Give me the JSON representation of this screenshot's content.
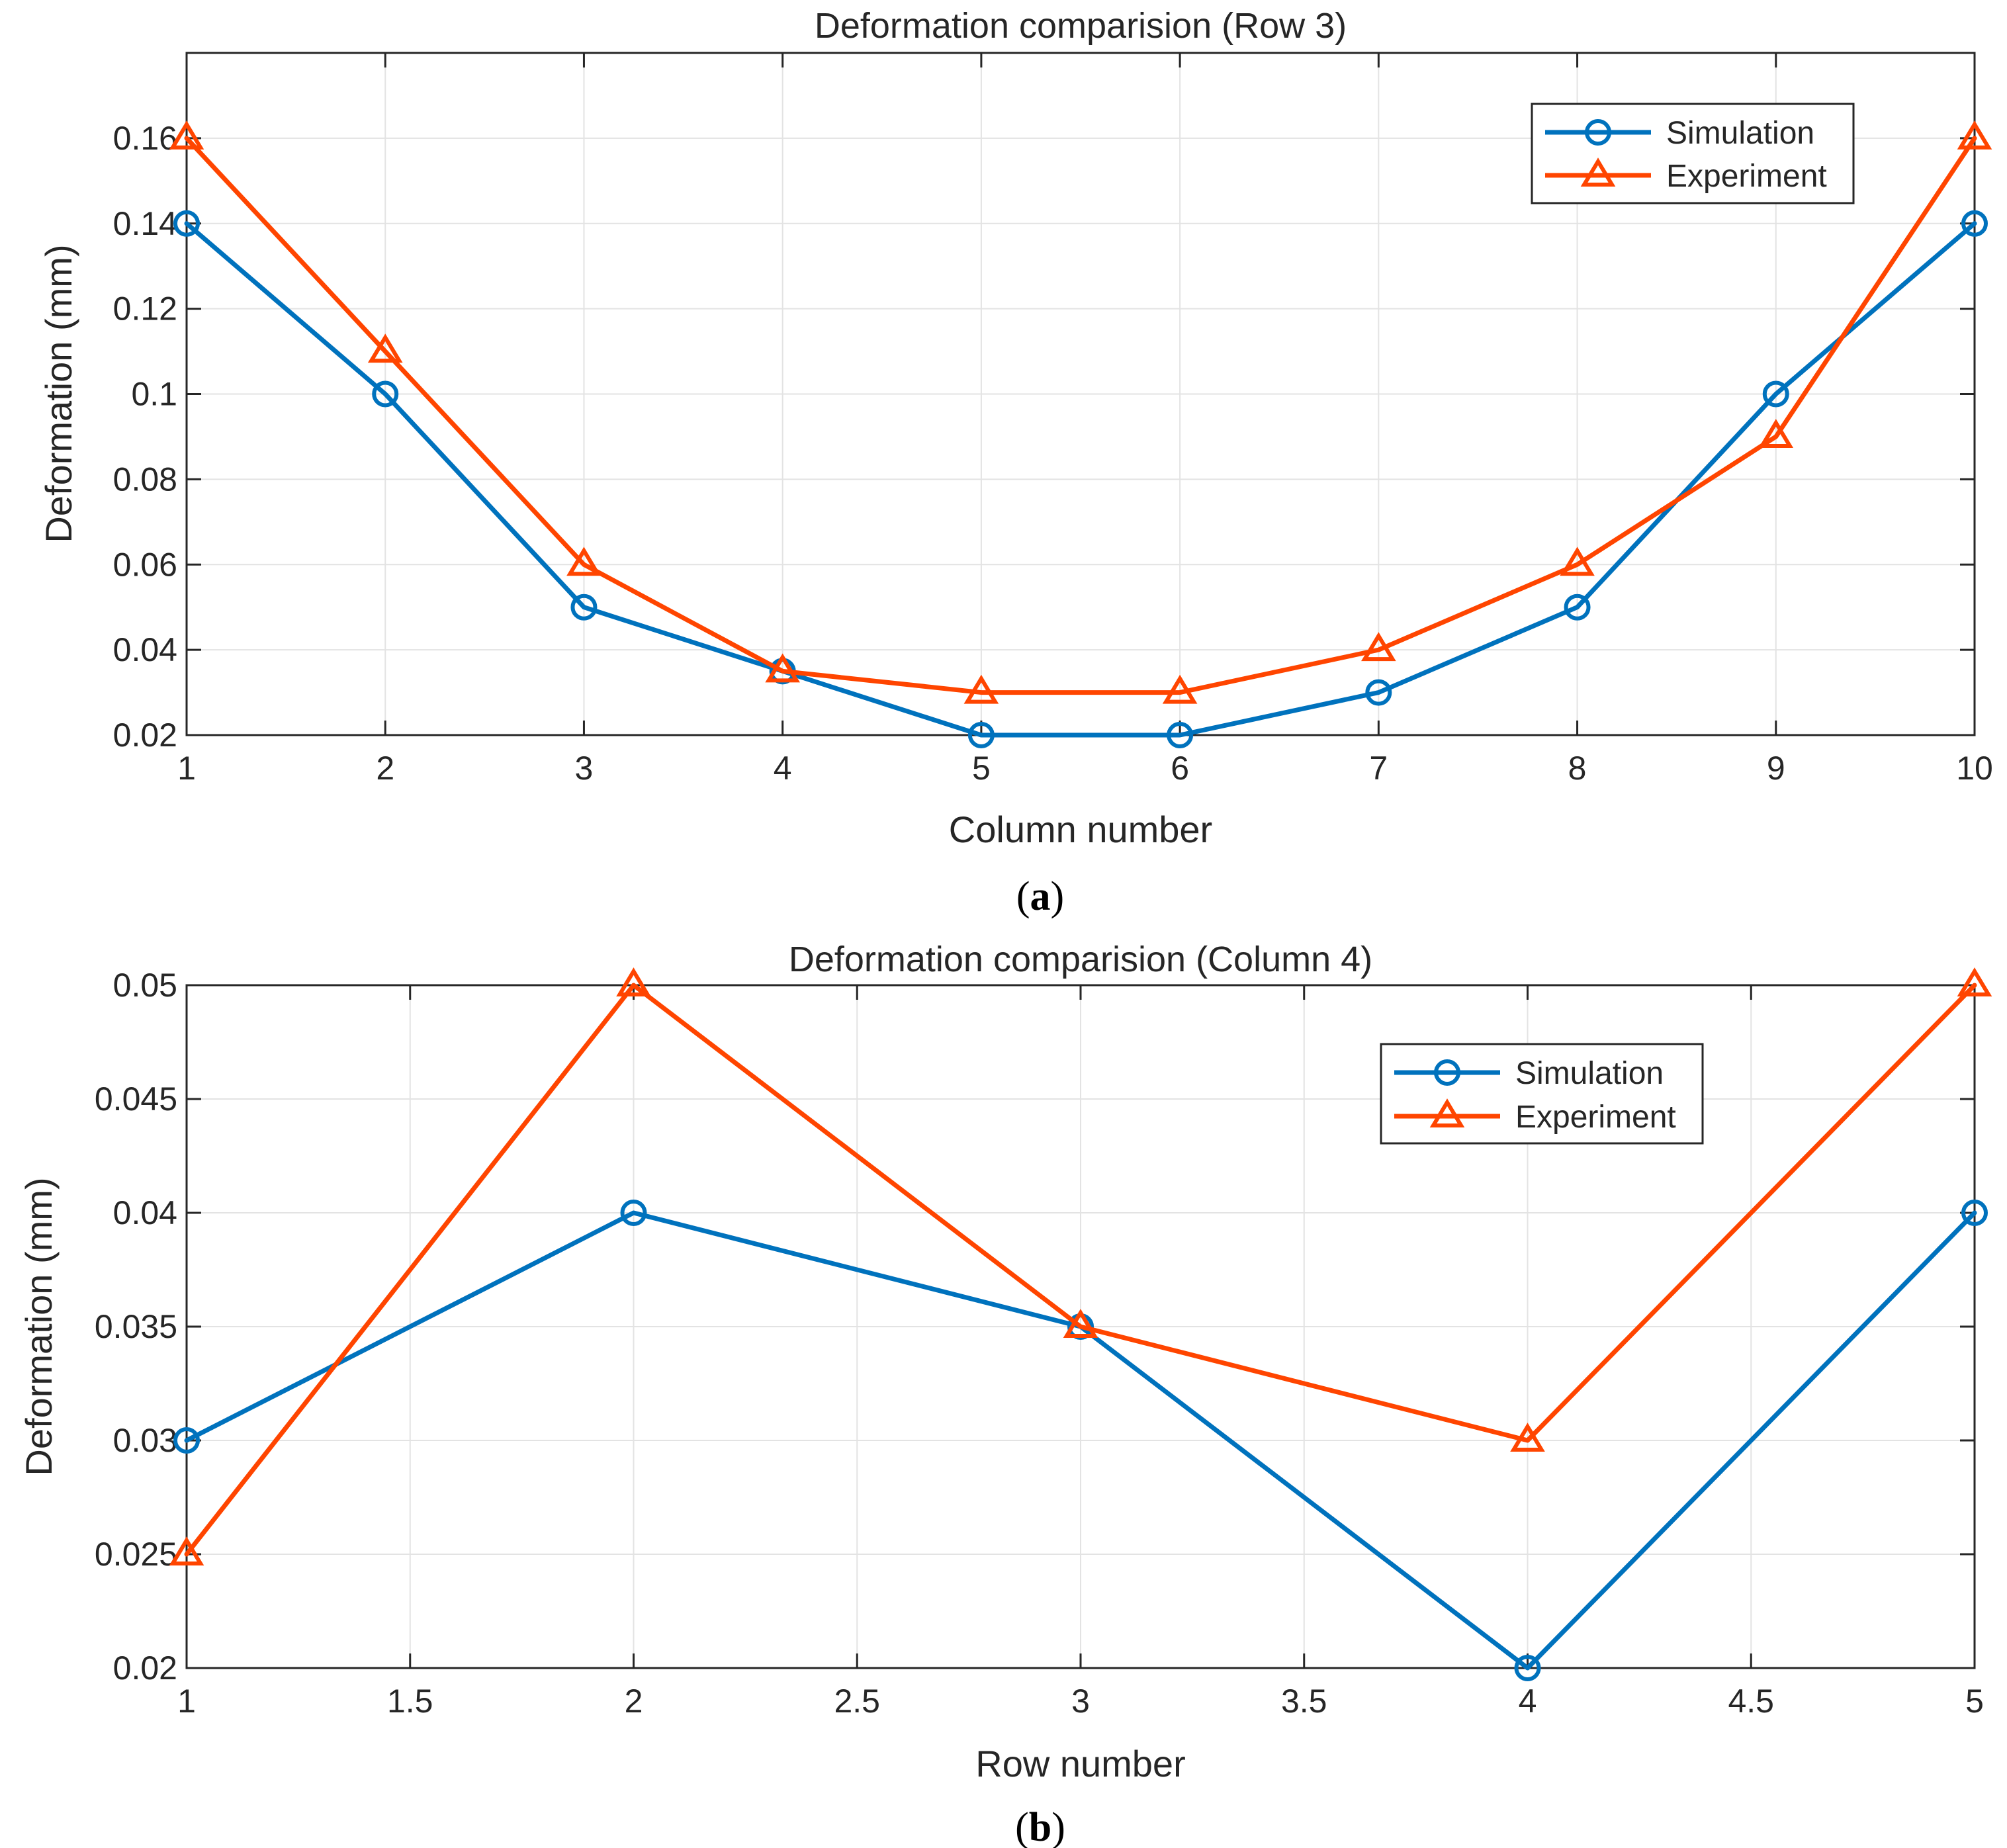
{
  "colors": {
    "simulation": "#0072BD",
    "experiment": "#FF4500",
    "grid": "#E3E3E3",
    "axis": "#262626"
  },
  "chart_data": [
    {
      "type": "line",
      "panel_label": "a",
      "title": "Deformation comparision (Row 3)",
      "xlabel": "Column number",
      "ylabel": "Deformation (mm)",
      "xlim": [
        1,
        10
      ],
      "ylim": [
        0.02,
        0.18
      ],
      "xticks": [
        1,
        2,
        3,
        4,
        5,
        6,
        7,
        8,
        9,
        10
      ],
      "xtick_labels": [
        "1",
        "2",
        "3",
        "4",
        "5",
        "6",
        "7",
        "8",
        "9",
        "10"
      ],
      "yticks": [
        0.02,
        0.04,
        0.06,
        0.08,
        0.1,
        0.12,
        0.14,
        0.16
      ],
      "ytick_labels": [
        "0.02",
        "0.04",
        "0.06",
        "0.08",
        "0.1",
        "0.12",
        "0.14",
        "0.16"
      ],
      "grid": true,
      "legend_position": "top-right",
      "x": [
        1,
        2,
        3,
        4,
        5,
        6,
        7,
        8,
        9,
        10
      ],
      "series": [
        {
          "name": "Simulation",
          "marker": "circle",
          "values": [
            0.14,
            0.1,
            0.05,
            0.035,
            0.02,
            0.02,
            0.03,
            0.05,
            0.1,
            0.14
          ]
        },
        {
          "name": "Experiment",
          "marker": "triangle",
          "values": [
            0.16,
            0.11,
            0.06,
            0.035,
            0.03,
            0.03,
            0.04,
            0.06,
            0.09,
            0.16
          ]
        }
      ]
    },
    {
      "type": "line",
      "panel_label": "b",
      "title": "Deformation comparision (Column 4)",
      "xlabel": "Row number",
      "ylabel": "Deformation (mm)",
      "xlim": [
        1,
        5
      ],
      "ylim": [
        0.02,
        0.05
      ],
      "xticks": [
        1,
        1.5,
        2,
        2.5,
        3,
        3.5,
        4,
        4.5,
        5
      ],
      "xtick_labels": [
        "1",
        "1.5",
        "2",
        "2.5",
        "3",
        "3.5",
        "4",
        "4.5",
        "5"
      ],
      "yticks": [
        0.02,
        0.025,
        0.03,
        0.035,
        0.04,
        0.045,
        0.05
      ],
      "ytick_labels": [
        "0.02",
        "0.025",
        "0.03",
        "0.035",
        "0.04",
        "0.045",
        "0.05"
      ],
      "grid": true,
      "legend_position": "top-right",
      "x": [
        1,
        2,
        3,
        4,
        5
      ],
      "series": [
        {
          "name": "Simulation",
          "marker": "circle",
          "values": [
            0.03,
            0.04,
            0.035,
            0.02,
            0.04
          ]
        },
        {
          "name": "Experiment",
          "marker": "triangle",
          "values": [
            0.025,
            0.05,
            0.035,
            0.03,
            0.05
          ]
        }
      ]
    }
  ]
}
